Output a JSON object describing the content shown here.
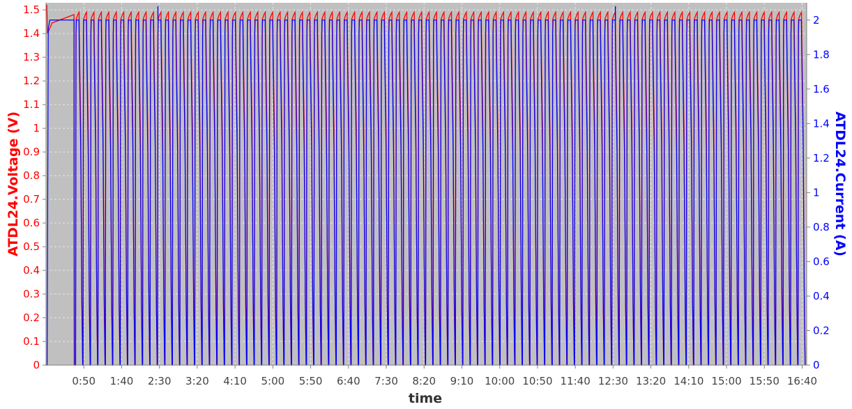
{
  "chart_data": {
    "type": "line",
    "xlabel": "time",
    "ylabel_left": "ATDL24.Voltage (V)",
    "ylabel_right": "ATDL24.Current (A)",
    "x_unit": "minutes",
    "xlim": [
      0,
      1006
    ],
    "x_ticks": [
      {
        "value": 50,
        "label": "0:50"
      },
      {
        "value": 100,
        "label": "1:40"
      },
      {
        "value": 150,
        "label": "2:30"
      },
      {
        "value": 200,
        "label": "3:20"
      },
      {
        "value": 250,
        "label": "4:10"
      },
      {
        "value": 300,
        "label": "5:00"
      },
      {
        "value": 350,
        "label": "5:50"
      },
      {
        "value": 400,
        "label": "6:40"
      },
      {
        "value": 450,
        "label": "7:30"
      },
      {
        "value": 500,
        "label": "8:20"
      },
      {
        "value": 550,
        "label": "9:10"
      },
      {
        "value": 600,
        "label": "10:00"
      },
      {
        "value": 650,
        "label": "10:50"
      },
      {
        "value": 700,
        "label": "11:40"
      },
      {
        "value": 750,
        "label": "12:30"
      },
      {
        "value": 800,
        "label": "13:20"
      },
      {
        "value": 850,
        "label": "14:10"
      },
      {
        "value": 900,
        "label": "15:00"
      },
      {
        "value": 950,
        "label": "15:50"
      },
      {
        "value": 1000,
        "label": "16:40"
      }
    ],
    "left_axis": {
      "ylim": [
        0,
        1.53
      ],
      "ticks": [
        "0",
        "0.1",
        "0.2",
        "0.3",
        "0.4",
        "0.5",
        "0.6",
        "0.7",
        "0.8",
        "0.9",
        "1",
        "1.1",
        "1.2",
        "1.3",
        "1.4",
        "1.5"
      ],
      "color": "#ff0000"
    },
    "right_axis": {
      "ylim": [
        0,
        2.1
      ],
      "ticks": [
        "0",
        "0.2",
        "0.4",
        "0.6",
        "0.8",
        "1",
        "1.2",
        "1.4",
        "1.6",
        "1.8",
        "2"
      ],
      "color": "#0000ff"
    },
    "grid": true,
    "plot_background": "#c0c0c0",
    "series": [
      {
        "name": "ATDL24.Voltage (V)",
        "axis": "left",
        "color": "#ff0000",
        "start": {
          "x": 0,
          "y": 1.52
        },
        "initial_charge": {
          "x_start": 2,
          "x_end": 37,
          "y_start": 1.4,
          "y_end": 1.48
        },
        "cycles": {
          "first_start": 39,
          "period": 9.85,
          "count": 98,
          "peak": 1.49,
          "min": 0.0
        }
      },
      {
        "name": "ATDL24.Current (A)",
        "axis": "right",
        "color": "#0000ff",
        "start": {
          "x": 0,
          "y": 0
        },
        "initial_plateau": {
          "x_start": 3,
          "x_end": 37,
          "y": 2.0
        },
        "cycles": {
          "first_start": 39,
          "period": 9.85,
          "count": 98,
          "plateau": 2.0,
          "min": 0.0
        },
        "spikes": [
          {
            "x": 148,
            "y": 2.08
          },
          {
            "x": 753,
            "y": 2.08
          }
        ]
      }
    ]
  }
}
